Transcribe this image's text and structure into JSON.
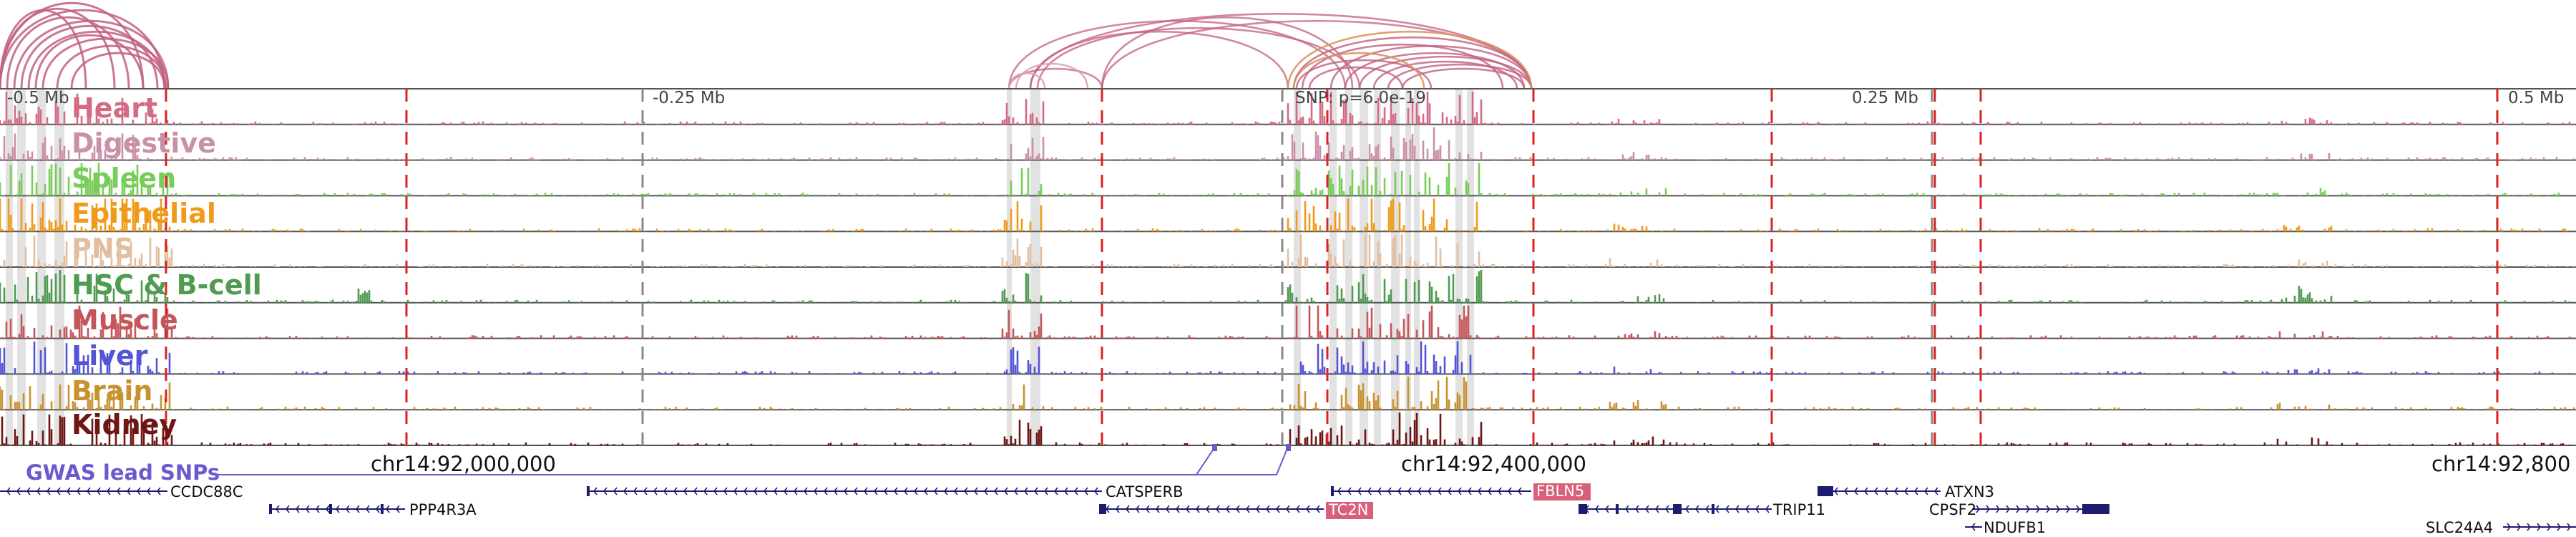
{
  "scale": {
    "left_label": "-0.5 Mb",
    "mid_left_label": "-0.25 Mb",
    "snp_label": "SNP: p=6.0e-19",
    "mid_right_label": "0.25 Mb",
    "right_label": "0.5 Mb"
  },
  "tracks": [
    {
      "name": "Heart",
      "color": "#d46a84"
    },
    {
      "name": "Digestive",
      "color": "#c990a8"
    },
    {
      "name": "Spleen",
      "color": "#78cc5a"
    },
    {
      "name": "Epithelial",
      "color": "#f09a1a"
    },
    {
      "name": "PNS",
      "color": "#e2bd9e"
    },
    {
      "name": "HSC & B-cell",
      "color": "#4f9b4f"
    },
    {
      "name": "Muscle",
      "color": "#c4565a"
    },
    {
      "name": "Liver",
      "color": "#5454d6"
    },
    {
      "name": "Brain",
      "color": "#c8922f"
    },
    {
      "name": "Kidney",
      "color": "#6e1515"
    }
  ],
  "gwas_label": "GWAS lead SNPs",
  "coordinates": [
    {
      "label": "chr14:92,000,000"
    },
    {
      "label": "chr14:92,400,000"
    },
    {
      "label": "chr14:92,800"
    }
  ],
  "genes": [
    {
      "name": "CCDC88C",
      "highlight": false
    },
    {
      "name": "PPP4R3A",
      "highlight": false
    },
    {
      "name": "CATSPERB",
      "highlight": false
    },
    {
      "name": "TC2N",
      "highlight": true
    },
    {
      "name": "FBLN5",
      "highlight": true
    },
    {
      "name": "TRIP11",
      "highlight": false
    },
    {
      "name": "ATXN3",
      "highlight": false
    },
    {
      "name": "CPSF2",
      "highlight": false
    },
    {
      "name": "NDUFB1",
      "highlight": false
    },
    {
      "name": "SLC24A4",
      "highlight": false
    }
  ],
  "colors": {
    "arc": "#c2607e",
    "arc_light": "#d9a2b6",
    "arc_orange": "#d98f5e",
    "red_dash": "#dd2222",
    "gene_dark": "#1c1c70",
    "gene_highlight": "#d9607a",
    "gwas": "#6a5acd"
  }
}
